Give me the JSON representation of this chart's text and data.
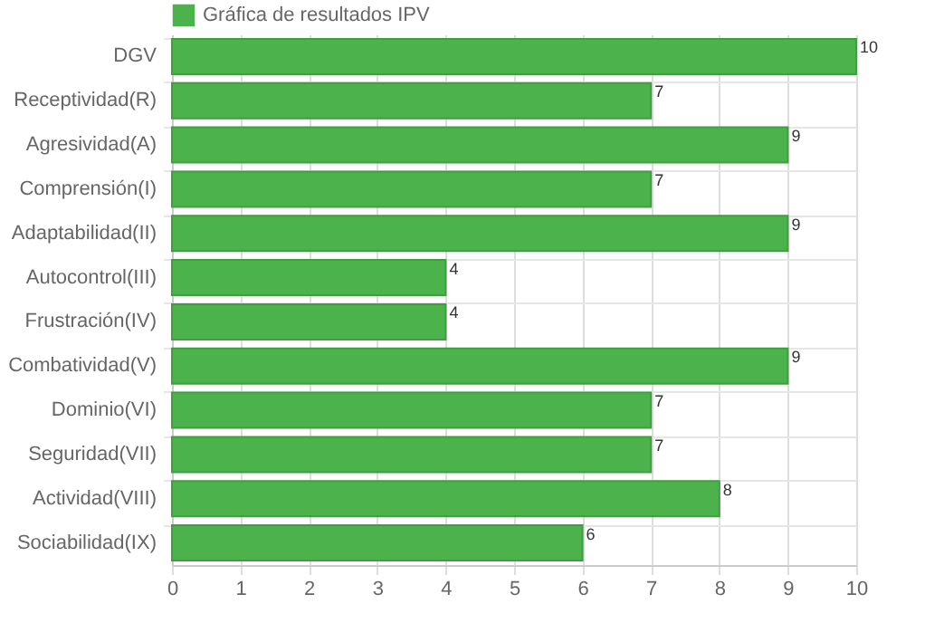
{
  "chart_data": {
    "type": "bar",
    "orientation": "horizontal",
    "categories": [
      "DGV",
      "Receptividad(R)",
      "Agresividad(A)",
      "Comprensión(I)",
      "Adaptabilidad(II)",
      "Autocontrol(III)",
      "Frustración(IV)",
      "Combatividad(V)",
      "Dominio(VI)",
      "Seguridad(VII)",
      "Actividad(VIII)",
      "Sociabilidad(IX)"
    ],
    "series": [
      {
        "name": "Gráfica de resultados IPV",
        "color": "#4cb34c",
        "values": [
          10,
          7,
          9,
          7,
          9,
          4,
          4,
          9,
          7,
          7,
          8,
          6
        ]
      }
    ],
    "xlim": [
      0,
      10
    ],
    "xticks": [
      0,
      1,
      2,
      3,
      4,
      5,
      6,
      7,
      8,
      9,
      10
    ],
    "grid": true,
    "legend": "top",
    "data_labels": true
  }
}
